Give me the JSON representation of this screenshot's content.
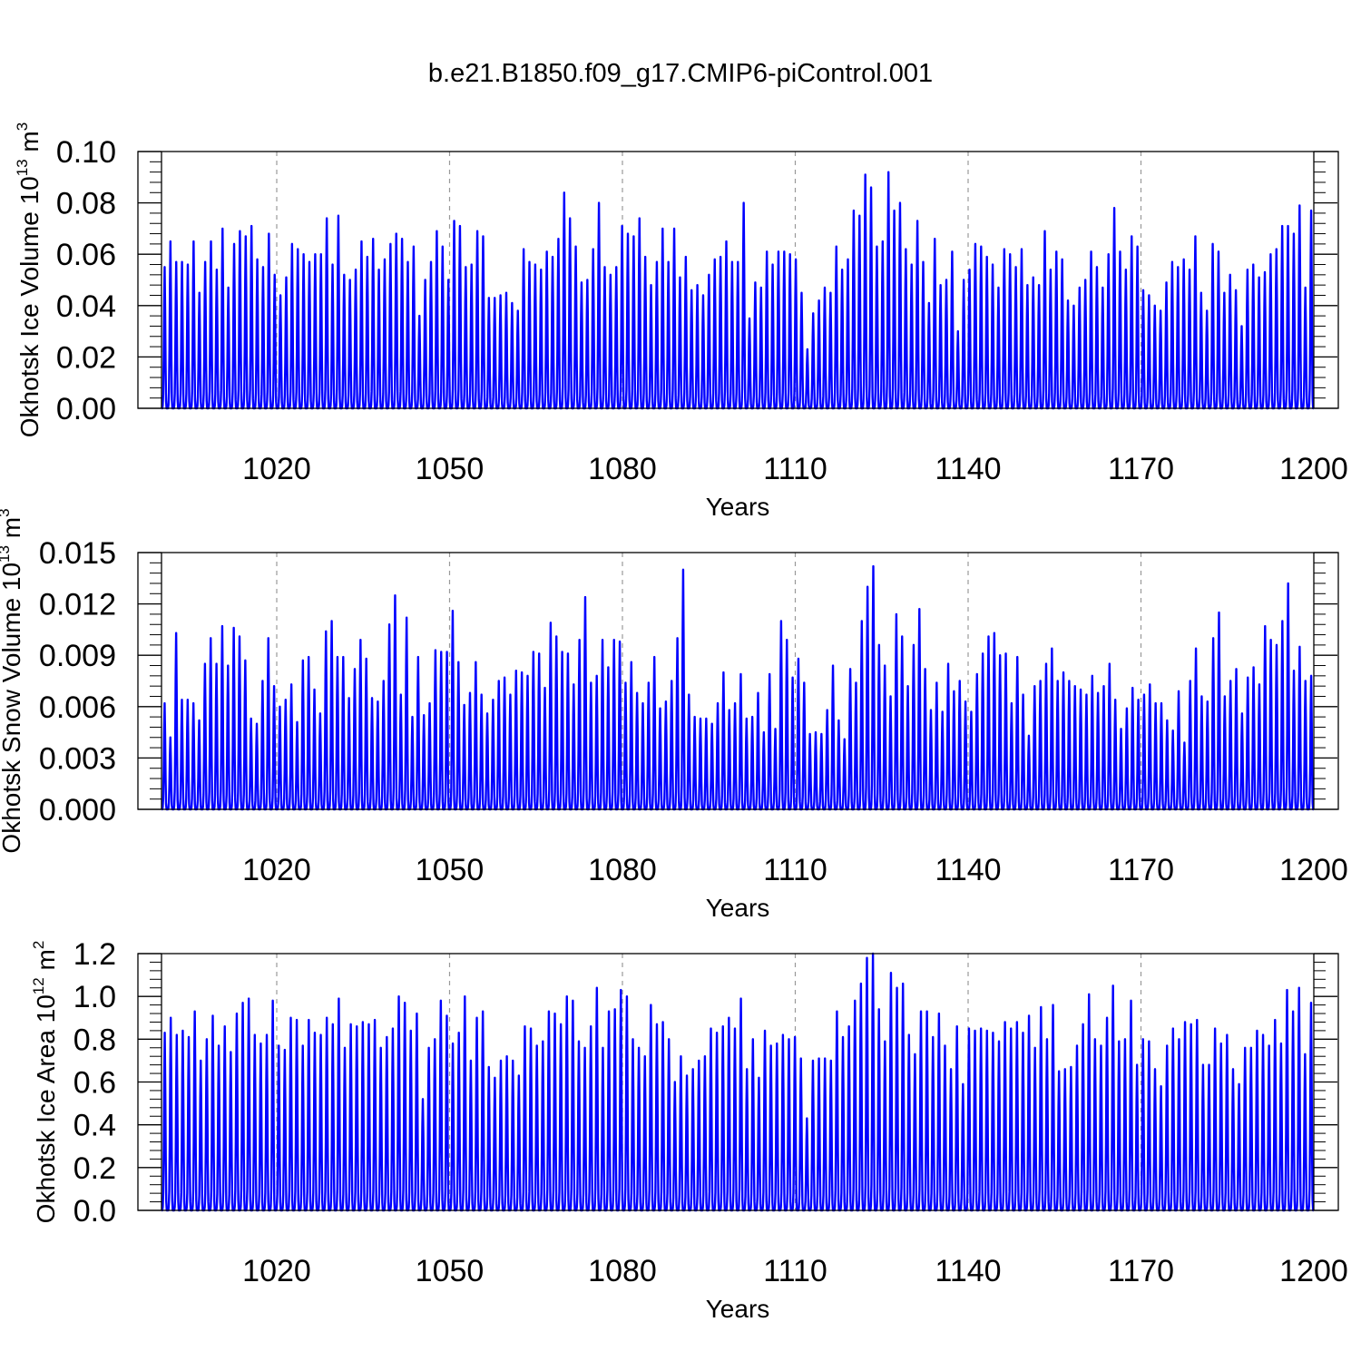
{
  "figure_title": "b.e21.B1850.f09_g17.CMIP6-piControl.001",
  "colors": {
    "series": "#0000ff",
    "axis": "#000000",
    "grid": "#999999"
  },
  "chart_data": [
    {
      "type": "line",
      "title": "",
      "xlabel": "Years",
      "ylabel": {
        "text": "Okhotsk Ice Volume 10",
        "exponent": "13",
        "unit": " m",
        "unit_exponent": "3"
      },
      "xlim": [
        1000,
        1200
      ],
      "ylim": [
        0,
        0.1
      ],
      "xticks": [
        1020,
        1050,
        1080,
        1110,
        1140,
        1170,
        1200
      ],
      "xtick_labels": [
        "1020",
        "1050",
        "1080",
        "1110",
        "1140",
        "1170",
        "1200"
      ],
      "yticks": [
        0,
        0.02,
        0.04,
        0.06,
        0.08,
        0.1
      ],
      "ytick_labels": [
        "0.00",
        "0.02",
        "0.04",
        "0.06",
        "0.08",
        "0.10"
      ],
      "grid": "dashed vertical at major x ticks",
      "legend": "none",
      "series": [
        {
          "resolution": "monthly, seasonal cycle from annual winter maxima to zero",
          "annual_max_years": [
            1000,
            1200
          ],
          "annual_max": [
            0.055,
            0.065,
            0.057,
            0.057,
            0.056,
            0.065,
            0.045,
            0.057,
            0.065,
            0.054,
            0.07,
            0.047,
            0.064,
            0.069,
            0.067,
            0.071,
            0.058,
            0.055,
            0.068,
            0.052,
            0.044,
            0.051,
            0.064,
            0.062,
            0.06,
            0.057,
            0.06,
            0.06,
            0.074,
            0.056,
            0.075,
            0.052,
            0.05,
            0.054,
            0.065,
            0.059,
            0.066,
            0.054,
            0.058,
            0.064,
            0.068,
            0.066,
            0.057,
            0.063,
            0.036,
            0.05,
            0.057,
            0.069,
            0.063,
            0.05,
            0.073,
            0.071,
            0.055,
            0.056,
            0.069,
            0.067,
            0.043,
            0.043,
            0.044,
            0.045,
            0.041,
            0.038,
            0.062,
            0.057,
            0.056,
            0.054,
            0.061,
            0.059,
            0.066,
            0.084,
            0.074,
            0.063,
            0.049,
            0.05,
            0.062,
            0.08,
            0.055,
            0.052,
            0.055,
            0.071,
            0.068,
            0.067,
            0.074,
            0.059,
            0.048,
            0.057,
            0.07,
            0.057,
            0.07,
            0.051,
            0.059,
            0.046,
            0.048,
            0.044,
            0.052,
            0.058,
            0.059,
            0.065,
            0.057,
            0.057,
            0.08,
            0.035,
            0.049,
            0.047,
            0.061,
            0.056,
            0.061,
            0.061,
            0.06,
            0.058,
            0.045,
            0.023,
            0.037,
            0.042,
            0.047,
            0.045,
            0.063,
            0.054,
            0.058,
            0.077,
            0.075,
            0.091,
            0.086,
            0.063,
            0.065,
            0.092,
            0.077,
            0.08,
            0.062,
            0.056,
            0.073,
            0.057,
            0.041,
            0.066,
            0.048,
            0.05,
            0.061,
            0.03,
            0.05,
            0.054,
            0.064,
            0.063,
            0.059,
            0.056,
            0.047,
            0.062,
            0.06,
            0.055,
            0.062,
            0.048,
            0.051,
            0.048,
            0.069,
            0.054,
            0.061,
            0.058,
            0.042,
            0.04,
            0.047,
            0.05,
            0.061,
            0.055,
            0.047,
            0.06,
            0.078,
            0.061,
            0.054,
            0.067,
            0.063,
            0.046,
            0.044,
            0.04,
            0.038,
            0.049,
            0.057,
            0.055,
            0.058,
            0.054,
            0.067,
            0.045,
            0.038,
            0.064,
            0.061,
            0.045,
            0.052,
            0.046,
            0.032,
            0.054,
            0.056,
            0.051,
            0.053,
            0.06,
            0.062,
            0.071,
            0.071,
            0.068,
            0.079,
            0.047,
            0.077
          ]
        }
      ]
    },
    {
      "type": "line",
      "title": "",
      "xlabel": "Years",
      "ylabel": {
        "text": "Okhotsk Snow Volume 10",
        "exponent": "13",
        "unit": " m",
        "unit_exponent": "3"
      },
      "xlim": [
        1000,
        1200
      ],
      "ylim": [
        0,
        0.015
      ],
      "xticks": [
        1020,
        1050,
        1080,
        1110,
        1140,
        1170,
        1200
      ],
      "xtick_labels": [
        "1020",
        "1050",
        "1080",
        "1110",
        "1140",
        "1170",
        "1200"
      ],
      "yticks": [
        0,
        0.003,
        0.006,
        0.009,
        0.012,
        0.015
      ],
      "ytick_labels": [
        "0.000",
        "0.003",
        "0.006",
        "0.009",
        "0.012",
        "0.015"
      ],
      "grid": "dashed vertical at major x ticks",
      "legend": "none",
      "series": [
        {
          "resolution": "monthly, seasonal cycle from annual winter maxima to zero",
          "annual_max_years": [
            1000,
            1200
          ],
          "annual_max": [
            0.0062,
            0.0042,
            0.0103,
            0.0064,
            0.0064,
            0.0062,
            0.0052,
            0.0085,
            0.01,
            0.0085,
            0.0107,
            0.0084,
            0.0106,
            0.0101,
            0.0087,
            0.0053,
            0.005,
            0.0075,
            0.01,
            0.0072,
            0.006,
            0.0064,
            0.0073,
            0.0051,
            0.0087,
            0.0089,
            0.007,
            0.0056,
            0.0104,
            0.011,
            0.0089,
            0.0089,
            0.0065,
            0.0082,
            0.0099,
            0.0088,
            0.0065,
            0.0063,
            0.0075,
            0.0108,
            0.0125,
            0.0067,
            0.0112,
            0.0054,
            0.0089,
            0.0055,
            0.0062,
            0.0093,
            0.0092,
            0.0092,
            0.0116,
            0.0086,
            0.0061,
            0.0068,
            0.0086,
            0.0067,
            0.0056,
            0.0064,
            0.0075,
            0.0077,
            0.0067,
            0.0081,
            0.008,
            0.0078,
            0.0092,
            0.0091,
            0.0071,
            0.0109,
            0.0101,
            0.0092,
            0.0091,
            0.0073,
            0.0099,
            0.0124,
            0.0074,
            0.0078,
            0.0099,
            0.0083,
            0.0099,
            0.0098,
            0.0074,
            0.0086,
            0.0068,
            0.0062,
            0.0074,
            0.0089,
            0.0059,
            0.0063,
            0.0075,
            0.01,
            0.014,
            0.0067,
            0.0054,
            0.0053,
            0.0053,
            0.005,
            0.0062,
            0.008,
            0.0058,
            0.0062,
            0.0079,
            0.0053,
            0.0054,
            0.0068,
            0.0045,
            0.0079,
            0.0047,
            0.011,
            0.0099,
            0.0077,
            0.0088,
            0.0074,
            0.0044,
            0.0045,
            0.0044,
            0.0058,
            0.0084,
            0.0052,
            0.0041,
            0.0082,
            0.0074,
            0.011,
            0.013,
            0.0142,
            0.0096,
            0.0084,
            0.0066,
            0.0114,
            0.0101,
            0.0072,
            0.0096,
            0.0117,
            0.0082,
            0.0058,
            0.0074,
            0.0057,
            0.0085,
            0.0069,
            0.0075,
            0.0063,
            0.0057,
            0.0079,
            0.0091,
            0.0101,
            0.0103,
            0.009,
            0.0091,
            0.0062,
            0.0089,
            0.0067,
            0.0043,
            0.0072,
            0.0075,
            0.0085,
            0.0094,
            0.0075,
            0.008,
            0.0075,
            0.0072,
            0.007,
            0.0067,
            0.0078,
            0.0068,
            0.0072,
            0.0085,
            0.0064,
            0.0047,
            0.0059,
            0.0071,
            0.0064,
            0.0067,
            0.0073,
            0.0062,
            0.0062,
            0.0052,
            0.0046,
            0.0069,
            0.0039,
            0.0075,
            0.0094,
            0.0066,
            0.0063,
            0.01,
            0.0115,
            0.0066,
            0.0075,
            0.0082,
            0.0056,
            0.0077,
            0.0083,
            0.0073,
            0.0107,
            0.0099,
            0.0096,
            0.011,
            0.0132,
            0.0081,
            0.0095,
            0.0075,
            0.0078
          ]
        }
      ]
    },
    {
      "type": "line",
      "title": "",
      "xlabel": "Years",
      "ylabel": {
        "text": "Okhotsk Ice Area 10",
        "exponent": "12",
        "unit": " m",
        "unit_exponent": "2"
      },
      "xlim": [
        1000,
        1200
      ],
      "ylim": [
        0,
        1.2
      ],
      "xticks": [
        1020,
        1050,
        1080,
        1110,
        1140,
        1170,
        1200
      ],
      "xtick_labels": [
        "1020",
        "1050",
        "1080",
        "1110",
        "1140",
        "1170",
        "1200"
      ],
      "yticks": [
        0,
        0.2,
        0.4,
        0.6,
        0.8,
        1.0,
        1.2
      ],
      "ytick_labels": [
        "0.0",
        "0.2",
        "0.4",
        "0.6",
        "0.8",
        "1.0",
        "1.2"
      ],
      "grid": "dashed vertical at major x ticks",
      "legend": "none",
      "series": [
        {
          "resolution": "monthly, seasonal cycle from annual winter maxima to zero",
          "annual_max_years": [
            1000,
            1200
          ],
          "annual_max": [
            0.83,
            0.9,
            0.82,
            0.84,
            0.81,
            0.93,
            0.7,
            0.8,
            0.91,
            0.77,
            0.86,
            0.74,
            0.92,
            0.97,
            0.99,
            0.82,
            0.78,
            0.82,
            0.98,
            0.77,
            0.75,
            0.9,
            0.89,
            0.77,
            0.89,
            0.83,
            0.82,
            0.9,
            0.87,
            0.99,
            0.76,
            0.87,
            0.86,
            0.88,
            0.87,
            0.89,
            0.76,
            0.81,
            0.85,
            1.0,
            0.97,
            0.84,
            0.92,
            0.52,
            0.76,
            0.8,
            0.98,
            0.91,
            0.78,
            0.83,
            1.0,
            0.7,
            0.9,
            0.93,
            0.67,
            0.62,
            0.7,
            0.72,
            0.7,
            0.63,
            0.86,
            0.85,
            0.77,
            0.79,
            0.93,
            0.92,
            0.87,
            1.0,
            0.98,
            0.79,
            0.76,
            0.86,
            1.04,
            0.76,
            0.93,
            0.94,
            1.03,
            1.0,
            0.8,
            0.76,
            0.72,
            0.96,
            0.87,
            0.88,
            0.8,
            0.6,
            0.72,
            0.63,
            0.66,
            0.7,
            0.72,
            0.85,
            0.83,
            0.86,
            0.9,
            0.85,
            0.99,
            0.66,
            0.8,
            0.62,
            0.84,
            0.77,
            0.78,
            0.82,
            0.8,
            0.81,
            0.71,
            0.43,
            0.7,
            0.71,
            0.71,
            0.7,
            0.93,
            0.81,
            0.86,
            0.98,
            1.06,
            1.18,
            1.2,
            0.94,
            0.79,
            1.11,
            1.04,
            1.06,
            0.82,
            0.73,
            0.93,
            0.93,
            0.81,
            0.92,
            0.77,
            0.66,
            0.86,
            0.59,
            0.85,
            0.84,
            0.85,
            0.84,
            0.83,
            0.79,
            0.88,
            0.85,
            0.88,
            0.83,
            0.91,
            0.76,
            0.95,
            0.8,
            0.96,
            0.65,
            0.66,
            0.67,
            0.77,
            0.87,
            1.01,
            0.8,
            0.77,
            0.9,
            1.05,
            0.79,
            0.8,
            0.98,
            0.68,
            0.8,
            0.79,
            0.66,
            0.58,
            0.77,
            0.85,
            0.8,
            0.88,
            0.87,
            0.89,
            0.68,
            0.68,
            0.85,
            0.78,
            0.82,
            0.66,
            0.59,
            0.76,
            0.76,
            0.84,
            0.82,
            0.77,
            0.89,
            0.78,
            1.03,
            0.93,
            1.04,
            0.73,
            0.97
          ]
        }
      ]
    }
  ]
}
